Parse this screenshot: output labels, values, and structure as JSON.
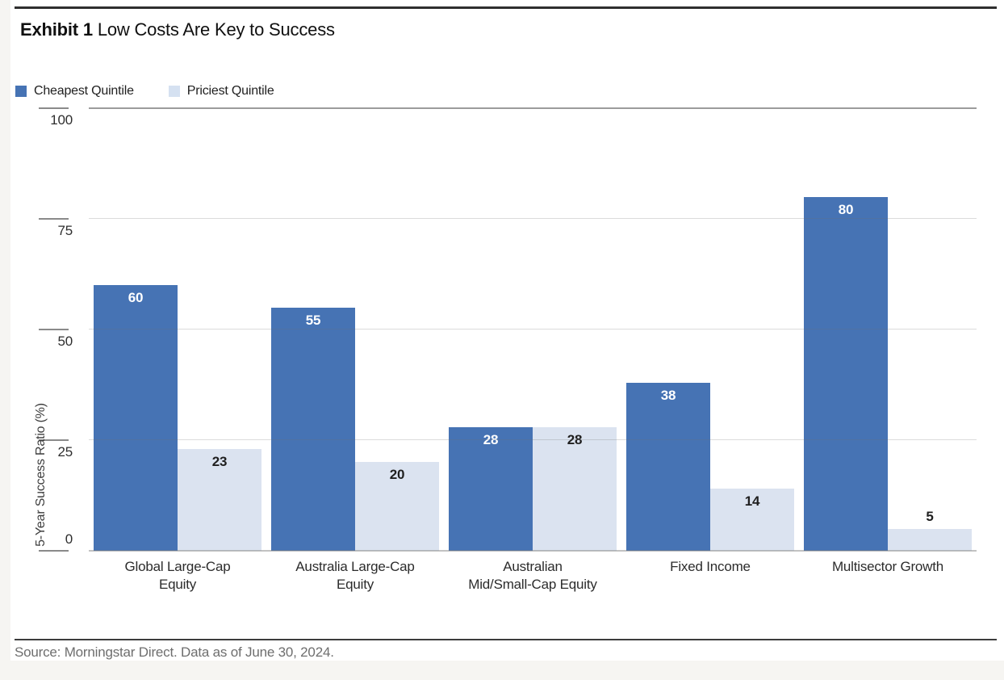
{
  "page": {
    "background_color": "#f6f5f2",
    "panel_color": "#ffffff"
  },
  "header": {
    "exhibit_label": "Exhibit 1",
    "title": "Low Costs Are Key to Success"
  },
  "chart_data": {
    "type": "bar",
    "title": "Exhibit 1 Low Costs Are Key to Success",
    "categories": [
      "Global Large-Cap\nEquity",
      "Australia Large-Cap\nEquity",
      "Australian\nMid/Small-Cap Equity",
      "Fixed Income",
      "Multisector Growth"
    ],
    "series": [
      {
        "name": "Cheapest Quintile",
        "color": "#4673b4",
        "label_color": "#ffffff",
        "values": [
          60,
          55,
          28,
          38,
          80
        ]
      },
      {
        "name": "Priciest Quintile",
        "color": "#dbe3f0",
        "label_color": "#1f1f1f",
        "values": [
          23,
          20,
          28,
          14,
          5
        ]
      }
    ],
    "xlabel": "",
    "ylabel": "5-Year Success Ratio (%)",
    "yticks": [
      0,
      25,
      50,
      75,
      100
    ],
    "ylim": [
      0,
      100
    ],
    "grid": "horizontal",
    "legend_position": "top-left",
    "bar_value_labels_shown": true
  },
  "legend": {
    "swatch_colors": [
      "#4673b4",
      "#d5e1f1"
    ]
  },
  "footer": {
    "source": "Source: Morningstar Direct. Data as of June 30, 2024."
  }
}
